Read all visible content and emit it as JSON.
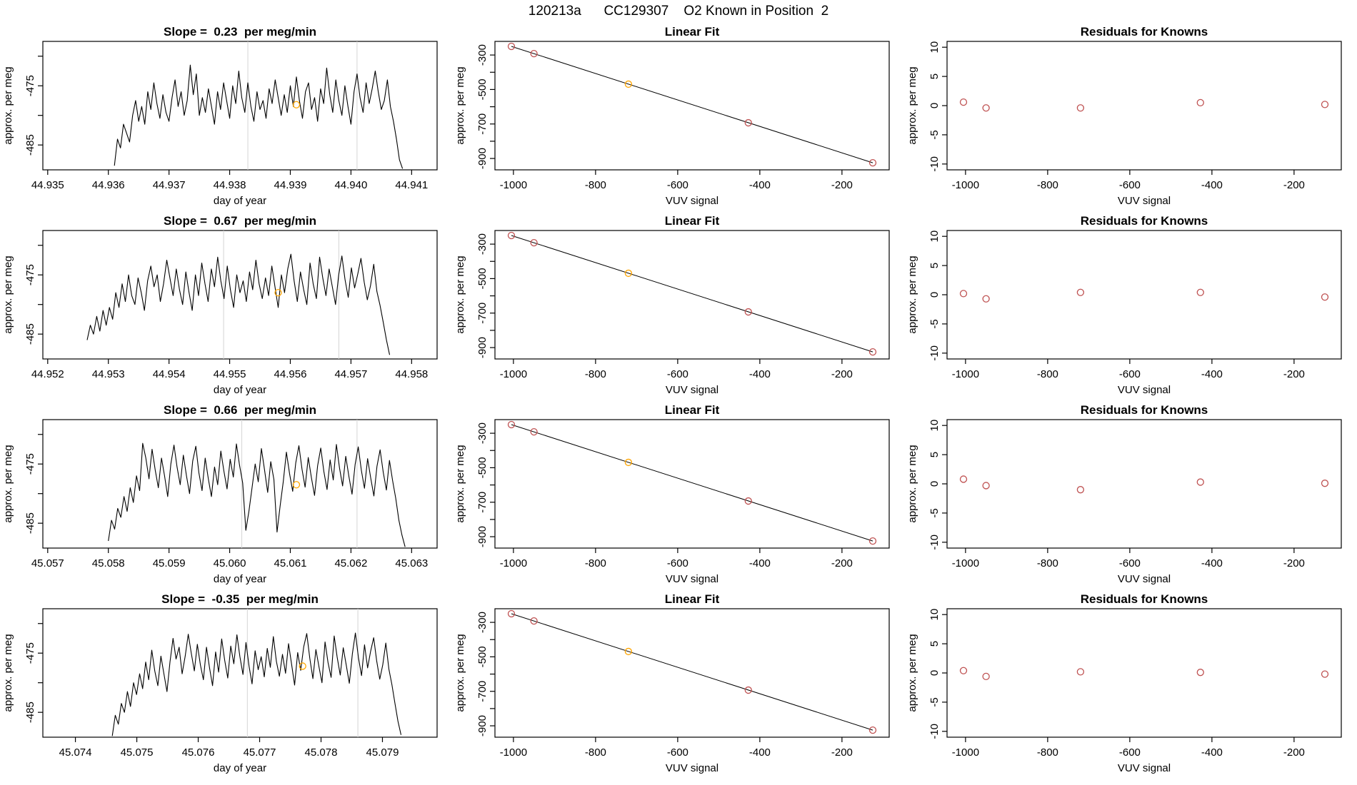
{
  "main_title": "120213a      CC129307    O2 Known in Position  2",
  "styles": {
    "point_color": "#bf5252",
    "highlight_color": "#ffa500",
    "guide_color": "#d4d4d4",
    "series_color": "#000000",
    "axis_color": "#000000"
  },
  "shared": {
    "ylabel": "approx. per meg",
    "time_xlabel": "day of year",
    "vuv_xlabel": "VUV signal",
    "fit_title": "Linear Fit",
    "resid_title": "Residuals for Knowns",
    "fit_axes": {
      "xlim": [
        -1045,
        -85
      ],
      "ylim": [
        -966,
        -221
      ],
      "xticks": [
        {
          "v": -1000,
          "l": "-1000"
        },
        {
          "v": -800,
          "l": "-800"
        },
        {
          "v": -600,
          "l": "-600"
        },
        {
          "v": -400,
          "l": "-400"
        },
        {
          "v": -200,
          "l": "-200"
        }
      ],
      "yticks": [
        {
          "v": -900,
          "l": "-900"
        },
        {
          "v": -800,
          "l": ""
        },
        {
          "v": -700,
          "l": "-700"
        },
        {
          "v": -600,
          "l": ""
        },
        {
          "v": -500,
          "l": "-500"
        },
        {
          "v": -400,
          "l": ""
        },
        {
          "v": -300,
          "l": "-300"
        }
      ]
    },
    "resid_axes": {
      "xlim": [
        -1045,
        -85
      ],
      "ylim": [
        -11,
        11
      ],
      "xticks": [
        {
          "v": -1000,
          "l": "-1000"
        },
        {
          "v": -800,
          "l": "-800"
        },
        {
          "v": -600,
          "l": "-600"
        },
        {
          "v": -400,
          "l": "-400"
        },
        {
          "v": -200,
          "l": "-200"
        }
      ],
      "yticks": [
        {
          "v": -10,
          "l": "-10"
        },
        {
          "v": -5,
          "l": "-5"
        },
        {
          "v": 0,
          "l": "0"
        },
        {
          "v": 5,
          "l": "5"
        },
        {
          "v": 10,
          "l": "10"
        }
      ]
    }
  },
  "chart_data": [
    {
      "slope_title": "Slope =  0.23  per meg/min",
      "timeseries": {
        "type": "line",
        "xlim": [
          44.93492,
          44.94142
        ],
        "ylim": [
          -489.2,
          -467.5
        ],
        "xticks": [
          {
            "v": 44.935,
            "l": "44.935"
          },
          {
            "v": 44.936,
            "l": "44.936"
          },
          {
            "v": 44.937,
            "l": "44.937"
          },
          {
            "v": 44.938,
            "l": "44.938"
          },
          {
            "v": 44.939,
            "l": "44.939"
          },
          {
            "v": 44.94,
            "l": "44.940"
          },
          {
            "v": 44.941,
            "l": "44.941"
          }
        ],
        "yticks": [
          {
            "v": -485,
            "l": "-485"
          },
          {
            "v": -480,
            "l": ""
          },
          {
            "v": -475,
            "l": "-475"
          },
          {
            "v": -470,
            "l": ""
          }
        ],
        "x_start": 44.9361,
        "dx": 5e-05,
        "values": [
          -488.5,
          -484.0,
          -485.5,
          -481.5,
          -483.0,
          -484.5,
          -480.0,
          -477.5,
          -481.0,
          -478.5,
          -481.5,
          -476.0,
          -479.0,
          -474.5,
          -478.0,
          -480.5,
          -476.5,
          -479.5,
          -481.0,
          -477.0,
          -474.0,
          -478.5,
          -476.0,
          -480.0,
          -477.5,
          -471.5,
          -476.5,
          -473.0,
          -480.0,
          -477.0,
          -479.5,
          -475.5,
          -478.5,
          -481.5,
          -476.0,
          -479.0,
          -474.5,
          -477.5,
          -480.5,
          -475.0,
          -478.0,
          -472.5,
          -477.0,
          -479.5,
          -474.5,
          -478.5,
          -481.0,
          -476.0,
          -479.0,
          -477.5,
          -480.5,
          -475.5,
          -478.0,
          -474.0,
          -477.0,
          -480.0,
          -476.5,
          -479.5,
          -475.0,
          -478.5,
          -473.5,
          -477.5,
          -480.5,
          -476.0,
          -474.5,
          -479.0,
          -477.0,
          -481.0,
          -475.5,
          -478.0,
          -472.0,
          -476.5,
          -479.5,
          -474.0,
          -477.5,
          -480.0,
          -475.0,
          -478.5,
          -481.5,
          -476.0,
          -473.0,
          -477.0,
          -479.5,
          -474.5,
          -478.0,
          -475.5,
          -472.5,
          -476.0,
          -479.0,
          -477.5,
          -474.0,
          -478.5,
          -481.0,
          -484.0,
          -487.5,
          -489.0
        ],
        "guides_x": [
          44.9383,
          44.9401
        ],
        "highlight": [
          44.9391,
          -478.2
        ]
      },
      "linear_fit": {
        "type": "scatter",
        "points_x": [
          -1005,
          -950,
          -720,
          -428,
          -125
        ],
        "points_y": [
          -250,
          -292,
          -469,
          -693,
          -925
        ],
        "highlight_index": 2
      },
      "residuals": {
        "type": "scatter",
        "points_x": [
          -1005,
          -950,
          -720,
          -428,
          -125
        ],
        "points_y": [
          0.6,
          -0.4,
          -0.4,
          0.5,
          0.2
        ]
      }
    },
    {
      "slope_title": "Slope =  0.67  per meg/min",
      "timeseries": {
        "type": "line",
        "xlim": [
          44.95192,
          44.95842
        ],
        "ylim": [
          -489.2,
          -467.5
        ],
        "xticks": [
          {
            "v": 44.952,
            "l": "44.952"
          },
          {
            "v": 44.953,
            "l": "44.953"
          },
          {
            "v": 44.954,
            "l": "44.954"
          },
          {
            "v": 44.955,
            "l": "44.955"
          },
          {
            "v": 44.956,
            "l": "44.956"
          },
          {
            "v": 44.957,
            "l": "44.957"
          },
          {
            "v": 44.958,
            "l": "44.958"
          }
        ],
        "yticks": [
          {
            "v": -485,
            "l": "-485"
          },
          {
            "v": -480,
            "l": ""
          },
          {
            "v": -475,
            "l": "-475"
          },
          {
            "v": -470,
            "l": ""
          }
        ],
        "x_start": 44.95265,
        "dx": 5.25e-05,
        "values": [
          -486.0,
          -483.5,
          -485.0,
          -482.0,
          -484.5,
          -481.0,
          -483.5,
          -480.5,
          -482.5,
          -478.0,
          -480.5,
          -476.5,
          -479.5,
          -475.0,
          -478.5,
          -480.0,
          -475.5,
          -478.0,
          -481.0,
          -476.0,
          -473.5,
          -477.0,
          -475.0,
          -479.5,
          -476.5,
          -472.5,
          -475.5,
          -478.5,
          -474.0,
          -477.5,
          -480.0,
          -474.5,
          -478.0,
          -481.0,
          -475.0,
          -478.5,
          -473.0,
          -476.5,
          -479.5,
          -474.0,
          -477.0,
          -472.0,
          -476.0,
          -479.0,
          -473.5,
          -477.5,
          -480.5,
          -475.0,
          -478.0,
          -476.0,
          -479.5,
          -474.5,
          -477.5,
          -472.5,
          -476.5,
          -479.0,
          -475.5,
          -478.5,
          -473.5,
          -477.0,
          -480.5,
          -475.0,
          -478.0,
          -474.0,
          -471.5,
          -476.0,
          -479.5,
          -474.5,
          -477.5,
          -480.0,
          -473.0,
          -476.5,
          -479.0,
          -472.0,
          -475.5,
          -478.5,
          -474.0,
          -477.0,
          -480.0,
          -475.0,
          -471.8,
          -475.8,
          -478.8,
          -473.8,
          -477.2,
          -474.8,
          -472.2,
          -476.2,
          -479.2,
          -476.8,
          -473.2,
          -477.8,
          -480.2,
          -483.0,
          -486.0,
          -488.5
        ],
        "guides_x": [
          44.9549,
          44.9568
        ],
        "highlight": [
          44.9558,
          -478.0
        ]
      },
      "linear_fit": {
        "type": "scatter",
        "points_x": [
          -1005,
          -950,
          -720,
          -428,
          -125
        ],
        "points_y": [
          -250,
          -292,
          -469,
          -693,
          -925
        ],
        "highlight_index": 2
      },
      "residuals": {
        "type": "scatter",
        "points_x": [
          -1005,
          -950,
          -720,
          -428,
          -125
        ],
        "points_y": [
          0.2,
          -0.7,
          0.4,
          0.4,
          -0.4
        ]
      }
    },
    {
      "slope_title": "Slope =  0.66  per meg/min",
      "timeseries": {
        "type": "line",
        "xlim": [
          45.05692,
          45.06342
        ],
        "ylim": [
          -489.2,
          -467.5
        ],
        "xticks": [
          {
            "v": 45.057,
            "l": "45.057"
          },
          {
            "v": 45.058,
            "l": "45.058"
          },
          {
            "v": 45.059,
            "l": "45.059"
          },
          {
            "v": 45.06,
            "l": "45.060"
          },
          {
            "v": 45.061,
            "l": "45.061"
          },
          {
            "v": 45.062,
            "l": "45.062"
          },
          {
            "v": 45.063,
            "l": "45.063"
          }
        ],
        "yticks": [
          {
            "v": -485,
            "l": "-485"
          },
          {
            "v": -480,
            "l": ""
          },
          {
            "v": -475,
            "l": "-475"
          },
          {
            "v": -470,
            "l": ""
          }
        ],
        "x_start": 45.058,
        "dx": 5.15e-05,
        "values": [
          -488.0,
          -484.5,
          -486.0,
          -482.5,
          -484.0,
          -480.5,
          -483.0,
          -479.0,
          -481.5,
          -477.0,
          -479.5,
          -471.5,
          -474.0,
          -477.5,
          -472.5,
          -476.0,
          -479.0,
          -474.0,
          -477.0,
          -480.5,
          -475.0,
          -471.8,
          -475.5,
          -478.5,
          -473.5,
          -477.0,
          -480.0,
          -474.5,
          -472.0,
          -476.5,
          -479.5,
          -474.0,
          -477.5,
          -480.5,
          -475.5,
          -478.5,
          -472.8,
          -476.2,
          -479.2,
          -474.2,
          -477.2,
          -471.6,
          -475.2,
          -478.2,
          -486.2,
          -483.0,
          -479.0,
          -475.0,
          -478.0,
          -472.4,
          -476.0,
          -479.8,
          -474.6,
          -477.6,
          -486.5,
          -482.0,
          -478.0,
          -473.0,
          -476.6,
          -479.6,
          -474.8,
          -471.9,
          -475.9,
          -478.9,
          -473.9,
          -477.3,
          -480.3,
          -475.3,
          -472.3,
          -476.3,
          -479.3,
          -474.3,
          -477.7,
          -471.7,
          -475.7,
          -478.7,
          -473.7,
          -477.1,
          -480.1,
          -475.1,
          -472.1,
          -476.1,
          -479.1,
          -474.1,
          -477.4,
          -480.4,
          -475.4,
          -472.6,
          -476.4,
          -479.4,
          -474.4,
          -477.8,
          -480.8,
          -484.5,
          -487.0,
          -489.0
        ],
        "guides_x": [
          45.0602,
          45.0621
        ],
        "highlight": [
          45.0611,
          -478.5
        ]
      },
      "linear_fit": {
        "type": "scatter",
        "points_x": [
          -1005,
          -950,
          -720,
          -428,
          -125
        ],
        "points_y": [
          -250,
          -292,
          -469,
          -693,
          -925
        ],
        "highlight_index": 2
      },
      "residuals": {
        "type": "scatter",
        "points_x": [
          -1005,
          -950,
          -720,
          -428,
          -125
        ],
        "points_y": [
          0.8,
          -0.3,
          -1.0,
          0.3,
          0.1
        ]
      }
    },
    {
      "slope_title": "Slope =  -0.35  per meg/min",
      "timeseries": {
        "type": "line",
        "xlim": [
          45.07347,
          45.07989
        ],
        "ylim": [
          -489.2,
          -467.5
        ],
        "xticks": [
          {
            "v": 45.074,
            "l": "45.074"
          },
          {
            "v": 45.075,
            "l": "45.075"
          },
          {
            "v": 45.076,
            "l": "45.076"
          },
          {
            "v": 45.077,
            "l": "45.077"
          },
          {
            "v": 45.078,
            "l": "45.078"
          },
          {
            "v": 45.079,
            "l": "45.079"
          }
        ],
        "yticks": [
          {
            "v": -485,
            "l": "-485"
          },
          {
            "v": -480,
            "l": ""
          },
          {
            "v": -475,
            "l": "-475"
          },
          {
            "v": -470,
            "l": ""
          }
        ],
        "x_start": 45.0746,
        "dx": 4.95e-05,
        "values": [
          -489.0,
          -485.5,
          -487.0,
          -483.5,
          -485.0,
          -481.5,
          -484.0,
          -480.0,
          -482.0,
          -478.5,
          -481.0,
          -476.5,
          -479.5,
          -474.5,
          -478.0,
          -480.5,
          -475.5,
          -478.5,
          -481.5,
          -476.5,
          -472.5,
          -476.0,
          -474.0,
          -478.5,
          -475.5,
          -471.8,
          -475.0,
          -478.0,
          -473.5,
          -477.0,
          -479.5,
          -474.0,
          -477.5,
          -480.5,
          -474.8,
          -478.2,
          -472.6,
          -476.2,
          -479.2,
          -473.8,
          -476.8,
          -471.9,
          -475.6,
          -478.6,
          -473.2,
          -477.2,
          -480.2,
          -474.6,
          -477.8,
          -475.6,
          -479.0,
          -474.2,
          -477.4,
          -472.2,
          -476.4,
          -478.9,
          -475.2,
          -478.4,
          -473.4,
          -476.9,
          -480.4,
          -474.9,
          -477.9,
          -473.9,
          -471.7,
          -475.9,
          -479.3,
          -474.4,
          -477.3,
          -480.0,
          -473.1,
          -476.6,
          -479.1,
          -472.1,
          -475.7,
          -478.7,
          -474.1,
          -477.1,
          -480.1,
          -475.1,
          -471.6,
          -475.8,
          -478.8,
          -473.6,
          -477.5,
          -474.7,
          -472.4,
          -476.3,
          -479.4,
          -477.0,
          -473.3,
          -477.7,
          -480.3,
          -483.5,
          -486.5,
          -488.8
        ],
        "guides_x": [
          45.0768,
          45.0786
        ],
        "highlight": [
          45.0777,
          -477.2
        ]
      },
      "linear_fit": {
        "type": "scatter",
        "points_x": [
          -1005,
          -950,
          -720,
          -428,
          -125
        ],
        "points_y": [
          -250,
          -292,
          -469,
          -693,
          -925
        ],
        "highlight_index": 2
      },
      "residuals": {
        "type": "scatter",
        "points_x": [
          -1005,
          -950,
          -720,
          -428,
          -125
        ],
        "points_y": [
          0.4,
          -0.6,
          0.2,
          0.1,
          -0.2
        ]
      }
    }
  ]
}
